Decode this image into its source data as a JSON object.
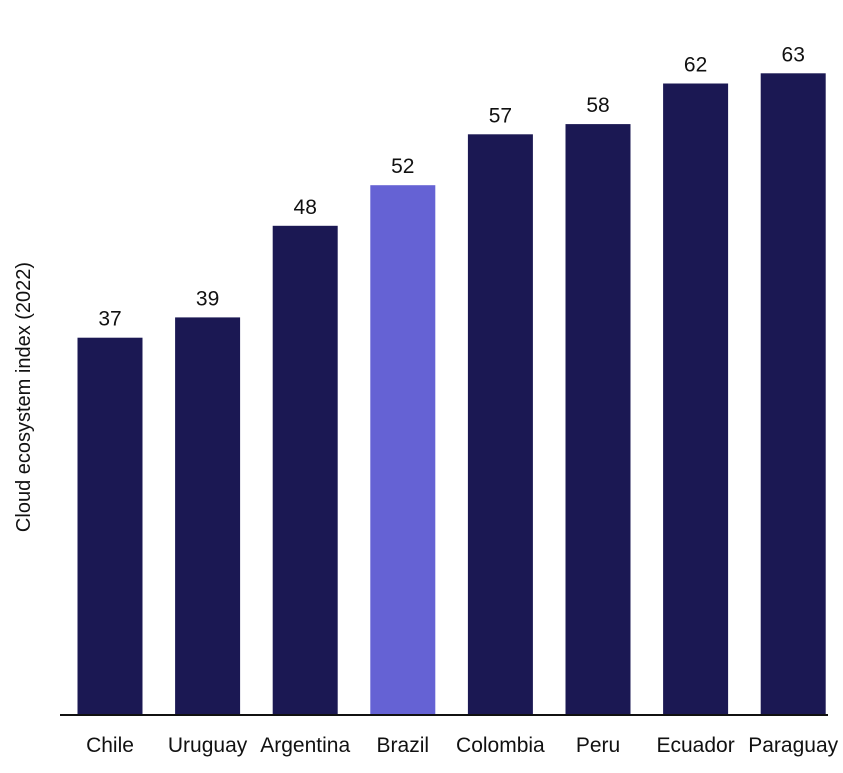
{
  "chart_data": {
    "type": "bar",
    "title": "",
    "xlabel": "",
    "ylabel": "Cloud ecosystem index (2022)",
    "categories": [
      "Chile",
      "Uruguay",
      "Argentina",
      "Brazil",
      "Colombia",
      "Peru",
      "Ecuador",
      "Paraguay"
    ],
    "values": [
      37,
      39,
      48,
      52,
      57,
      58,
      62,
      63
    ],
    "value_labels": [
      "37",
      "39",
      "48",
      "52",
      "57",
      "58",
      "62",
      "63"
    ],
    "ylim": [
      0,
      70
    ],
    "grid": false,
    "legend": "none",
    "highlight_category": "Brazil",
    "colors": {
      "bar": "#1b1853",
      "highlight": "#6562d4",
      "axis": "#111111",
      "text": "#111111"
    }
  }
}
